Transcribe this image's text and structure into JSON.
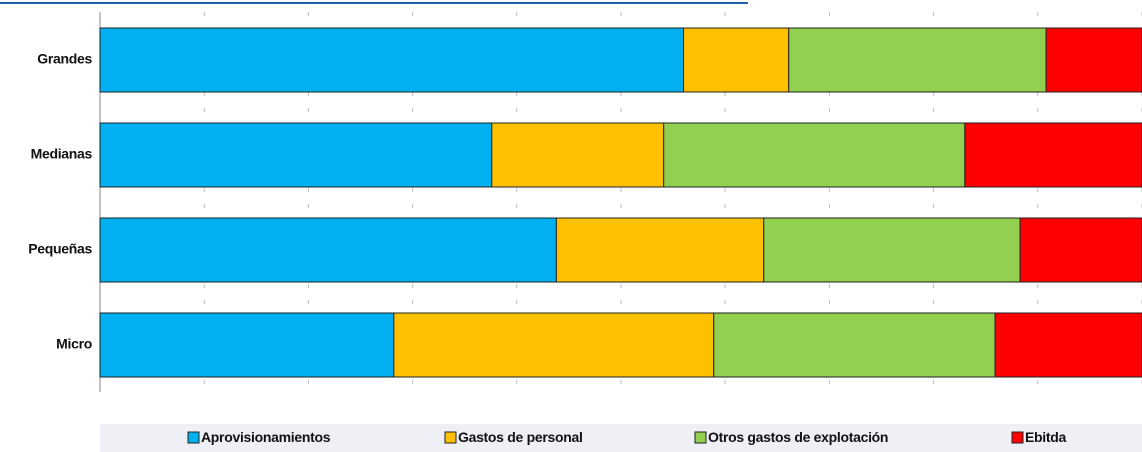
{
  "chart_data": {
    "type": "stacked_barh",
    "categories": [
      "Grandes",
      "Medianas",
      "Pequeñas",
      "Micro"
    ],
    "series": [
      {
        "name": "Aprovisionamientos",
        "color": "#00b0f0",
        "values": [
          56.0,
          37.6,
          43.8,
          28.2
        ]
      },
      {
        "name": "Gastos de personal",
        "color": "#ffc000",
        "values": [
          10.1,
          16.5,
          19.9,
          30.7
        ]
      },
      {
        "name": "Otros gastos de explotación",
        "color": "#92d050",
        "values": [
          24.7,
          28.9,
          24.6,
          27.0
        ]
      },
      {
        "name": "Ebitda",
        "color": "#ff0000",
        "values": [
          9.2,
          17.0,
          11.7,
          14.1
        ]
      }
    ],
    "xlim": [
      0,
      100
    ],
    "xticks": [
      0,
      10,
      20,
      30,
      40,
      50,
      60,
      70,
      80,
      90,
      100
    ],
    "grid": true,
    "legend": "bottom"
  }
}
